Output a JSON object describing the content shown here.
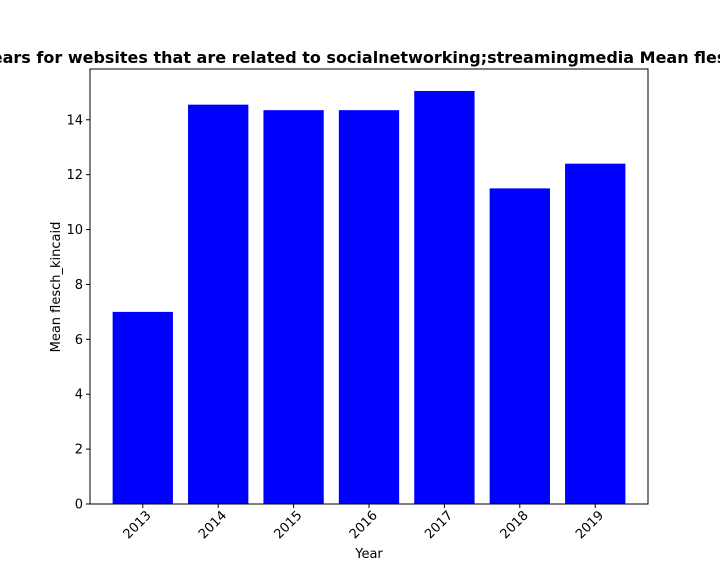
{
  "chart_data": {
    "type": "bar",
    "title": "Mean flesch_kincaid over years for websites that are related to socialnetworking;streamingmedia Mean flesch_kincaid in privacy policies",
    "xlabel": "Year",
    "ylabel": "Mean flesch_kincaid",
    "categories": [
      "2013",
      "2014",
      "2015",
      "2016",
      "2017",
      "2018",
      "2019"
    ],
    "values": [
      7.0,
      14.55,
      14.35,
      14.35,
      15.05,
      11.5,
      12.4
    ],
    "ylim": [
      0,
      15.85
    ],
    "yticks": [
      0,
      2,
      4,
      6,
      8,
      10,
      12,
      14
    ],
    "grid": false,
    "bar_color": "#0000ff"
  }
}
